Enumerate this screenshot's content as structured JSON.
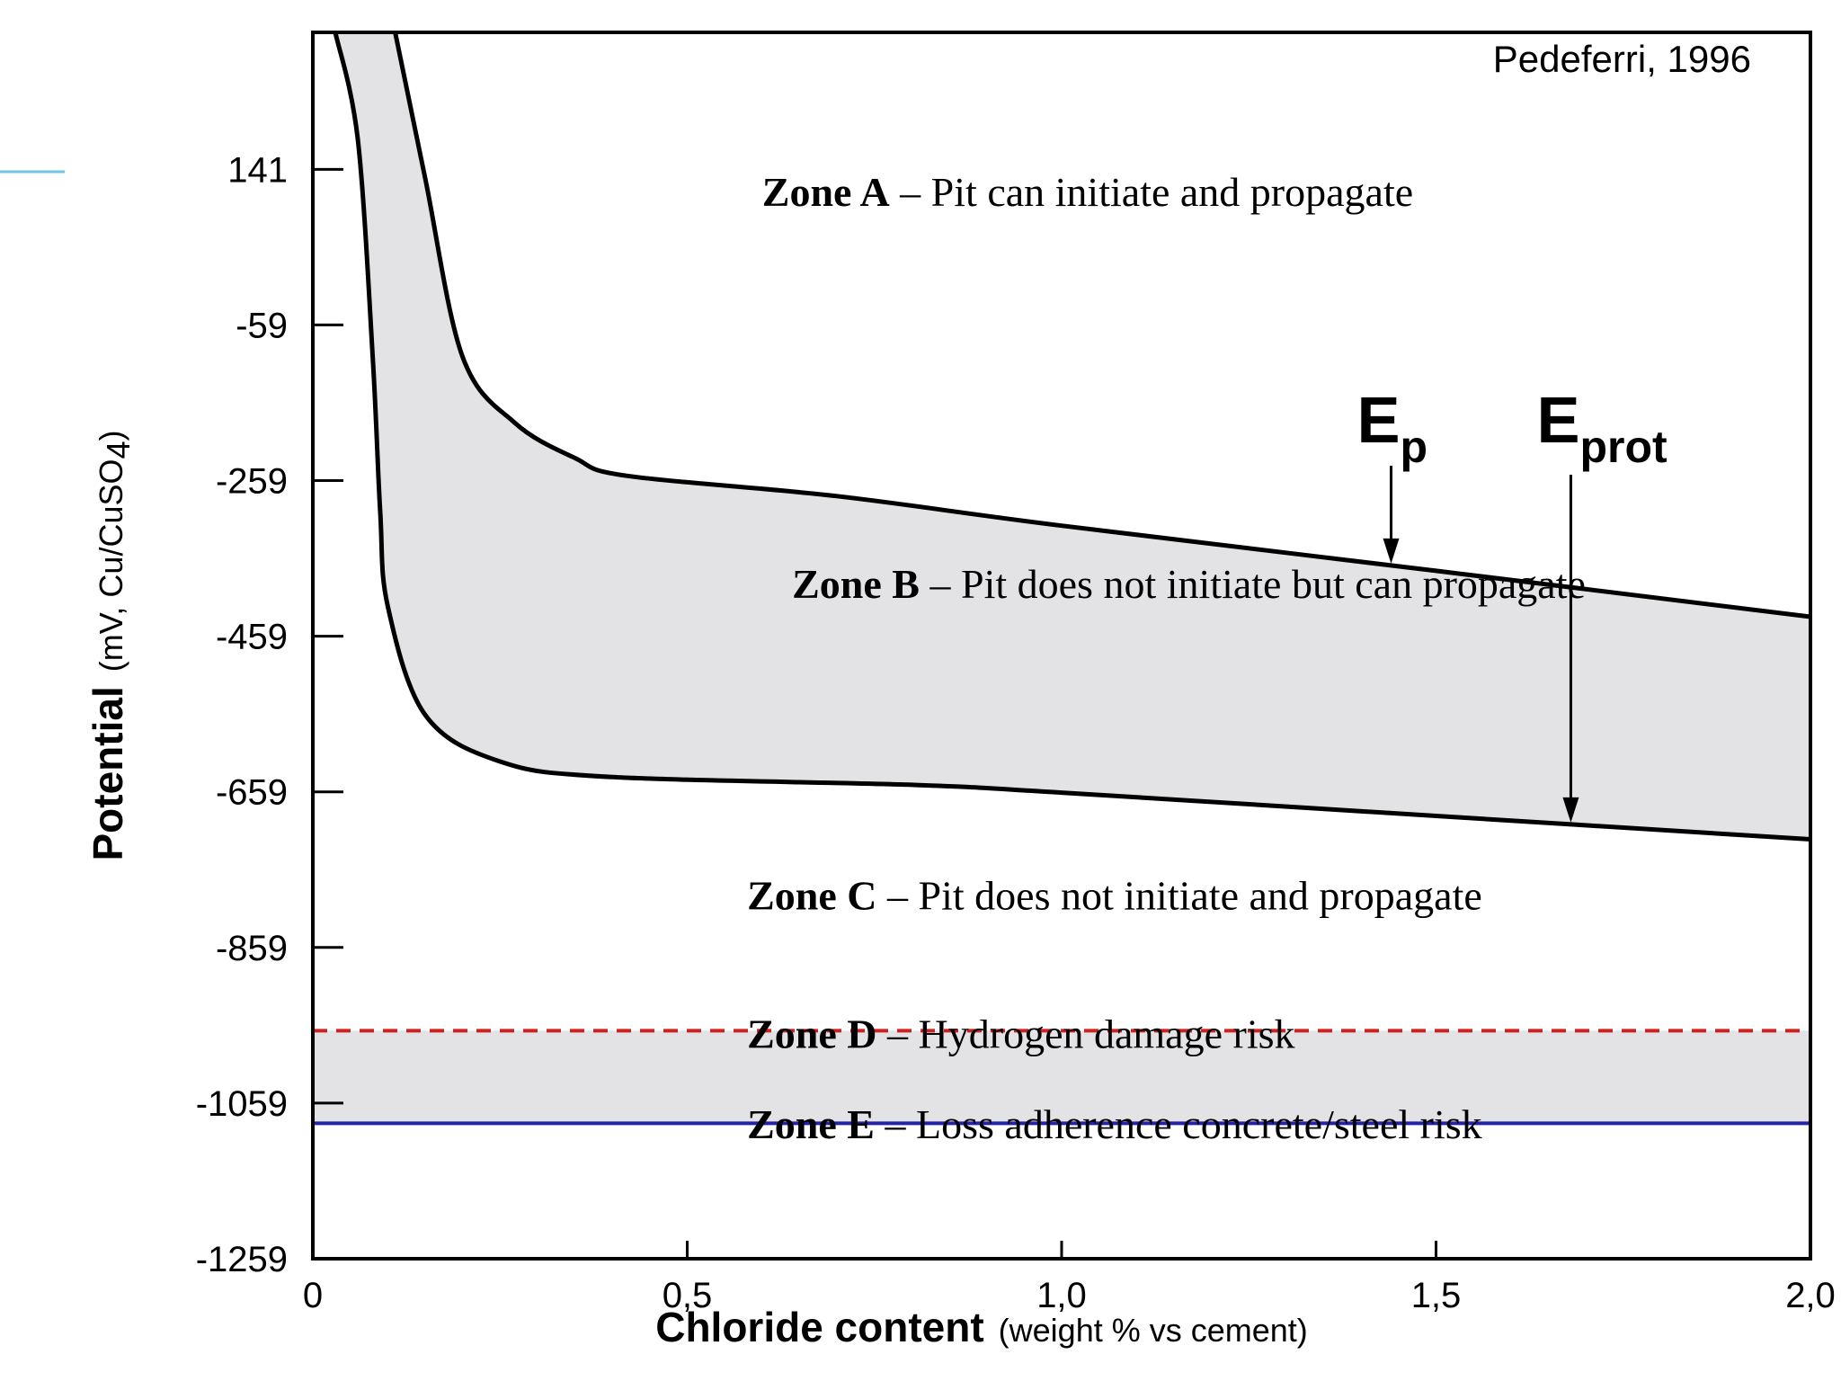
{
  "source_note": "Pedeferri, 1996",
  "chart_data": {
    "type": "area",
    "title": "",
    "xlabel": "Chloride content",
    "xlabel_unit": "(weight % vs cement)",
    "ylabel": "Potential",
    "ylabel_unit_pre": "(mV, Cu/CuSO",
    "ylabel_unit_sub": "4",
    "ylabel_unit_post": ")",
    "xlim": [
      0,
      2.0
    ],
    "ylim": [
      -1259,
      317
    ],
    "x_ticks": [
      {
        "value": 0,
        "label": "0"
      },
      {
        "value": 0.5,
        "label": "0,5"
      },
      {
        "value": 1.0,
        "label": "1,0"
      },
      {
        "value": 1.5,
        "label": "1,5"
      },
      {
        "value": 2.0,
        "label": "2,0"
      }
    ],
    "y_ticks": [
      {
        "value": 141,
        "label": "141"
      },
      {
        "value": -59,
        "label": "-59"
      },
      {
        "value": -259,
        "label": "-259"
      },
      {
        "value": -459,
        "label": "-459"
      },
      {
        "value": -659,
        "label": "-659"
      },
      {
        "value": -859,
        "label": "-859"
      },
      {
        "value": -1059,
        "label": "-1059"
      },
      {
        "value": -1259,
        "label": "-1259"
      }
    ],
    "series": [
      {
        "name": "Ep",
        "label_main": "E",
        "label_sub": "p",
        "points": [
          [
            0.11,
            317
          ],
          [
            0.15,
            130
          ],
          [
            0.2,
            -100
          ],
          [
            0.27,
            -185
          ],
          [
            0.35,
            -230
          ],
          [
            0.42,
            -253
          ],
          [
            0.7,
            -279
          ],
          [
            1.0,
            -317
          ],
          [
            1.5,
            -375
          ],
          [
            2.0,
            -434
          ]
        ],
        "arrow_x": 1.44
      },
      {
        "name": "Eprot",
        "label_main": "E",
        "label_sub": "prot",
        "points": [
          [
            0.03,
            317
          ],
          [
            0.06,
            180
          ],
          [
            0.08,
            -100
          ],
          [
            0.09,
            -300
          ],
          [
            0.1,
            -420
          ],
          [
            0.15,
            -560
          ],
          [
            0.25,
            -620
          ],
          [
            0.4,
            -640
          ],
          [
            0.8,
            -650
          ],
          [
            1.0,
            -660
          ],
          [
            1.5,
            -690
          ],
          [
            2.0,
            -720
          ]
        ],
        "arrow_x": 1.68
      }
    ],
    "h_lines": [
      {
        "name": "hydrogen-limit",
        "value": -966,
        "style": "dashed",
        "color": "#cc2222"
      },
      {
        "name": "adherence-limit",
        "value": -1085,
        "style": "solid",
        "color": "#2222aa"
      }
    ],
    "zones": [
      {
        "id": "A",
        "bold": "Zone A",
        "text": " – Pit can initiate and propagate",
        "x": 0.6,
        "y": 94
      },
      {
        "id": "B",
        "bold": "Zone B",
        "text": " – Pit does not initiate but can propagate",
        "x": 0.64,
        "y": -410
      },
      {
        "id": "C",
        "bold": "Zone C",
        "text": " – Pit does not initiate and propagate",
        "x": 0.58,
        "y": -810
      },
      {
        "id": "D",
        "bold": "Zone D",
        "text": " – Hydrogen damage risk",
        "x": 0.58,
        "y": -988
      },
      {
        "id": "E",
        "bold": "Zone E",
        "text": " – Loss adherence concrete/steel risk",
        "x": 0.58,
        "y": -1104
      }
    ]
  },
  "colors": {
    "shade": "#e3e3e6",
    "axis": "#000000",
    "dashed_line": "#cc2222",
    "solid_line": "#2222aa",
    "accent_line": "#6ec6e6"
  }
}
